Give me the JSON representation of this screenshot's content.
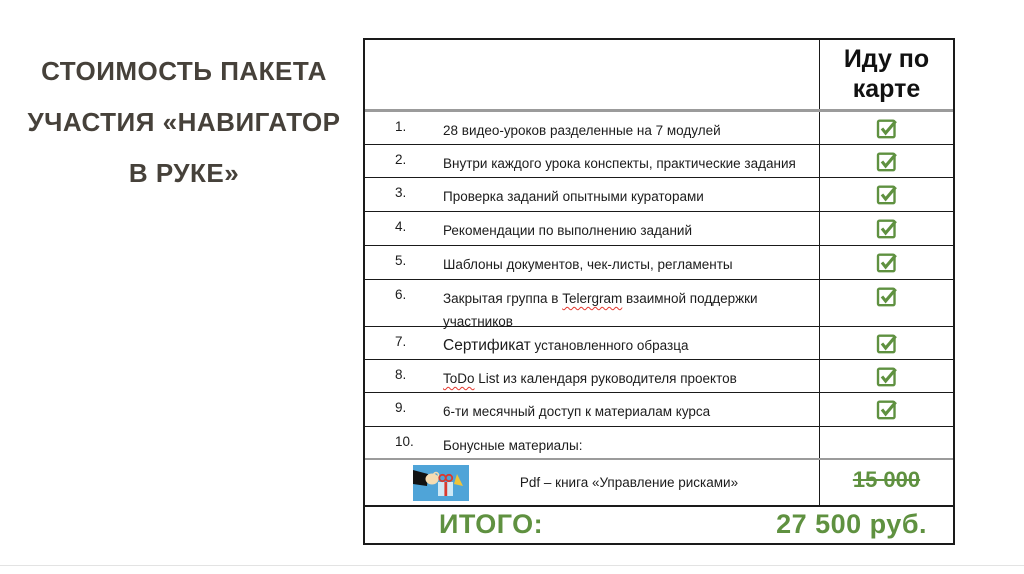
{
  "slide": {
    "title_lines": [
      "СТОИМОСТЬ ПАКЕТА",
      "УЧАСТИЯ «НАВИГАТОР",
      "В РУКЕ»"
    ]
  },
  "table": {
    "header_col": "Иду по карте",
    "rows": [
      {
        "num": "1.",
        "parts": [
          {
            "text": "28 видео-уроков разделенные на 7 модулей"
          }
        ],
        "checked": true
      },
      {
        "num": "2.",
        "parts": [
          {
            "text": "Внутри каждого урока конспекты, практические задания"
          }
        ],
        "checked": true
      },
      {
        "num": "3.",
        "parts": [
          {
            "text": "Проверка заданий опытными кураторами"
          }
        ],
        "checked": true
      },
      {
        "num": "4.",
        "parts": [
          {
            "text": "Рекомендации по выполнению заданий"
          }
        ],
        "checked": true
      },
      {
        "num": "5.",
        "parts": [
          {
            "text": "Шаблоны документов, чек-листы, регламенты"
          }
        ],
        "checked": true
      },
      {
        "num": "6.",
        "parts": [
          {
            "text": "Закрытая группа в "
          },
          {
            "text": "Telergram",
            "style": "misspell"
          },
          {
            "text": " взаимной поддержки участников"
          }
        ],
        "checked": true
      },
      {
        "num": "7.",
        "parts": [
          {
            "text": "Сертификат",
            "style": "big"
          },
          {
            "text": " установленного образца"
          }
        ],
        "checked": true
      },
      {
        "num": "8.",
        "parts": [
          {
            "text": "ToDo",
            "style": "misspell"
          },
          {
            "text": " List из календаря руководителя проектов"
          }
        ],
        "checked": true
      },
      {
        "num": "9.",
        "parts": [
          {
            "text": "6-ти месячный доступ к материалам курса"
          }
        ],
        "checked": true
      },
      {
        "num": "10.",
        "parts": [
          {
            "text": "Бонусные материалы:"
          }
        ],
        "checked": false
      }
    ],
    "bonus_row": {
      "icon": "gift-icon",
      "text": "Pdf – книга «Управление рисками»",
      "old_price": "15 000"
    },
    "total": {
      "label": "ИТОГО:",
      "value": "27 500 руб."
    }
  },
  "icons": {
    "check": "checkmark-icon",
    "gift": "gift-icon"
  },
  "colors": {
    "accent_green": "#5f9140",
    "title_color": "#46413a",
    "misspell_red": "#e4372e"
  }
}
